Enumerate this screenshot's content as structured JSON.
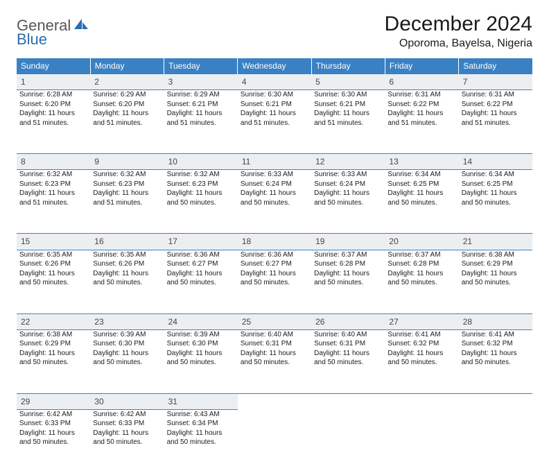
{
  "logo": {
    "word1": "General",
    "word2": "Blue",
    "text1_color": "#555555",
    "text2_color": "#2a6db0"
  },
  "title": "December 2024",
  "location": "Oporoma, Bayelsa, Nigeria",
  "day_headers": [
    "Sunday",
    "Monday",
    "Tuesday",
    "Wednesday",
    "Thursday",
    "Friday",
    "Saturday"
  ],
  "header_bg": "#3a81c4",
  "header_fg": "#ffffff",
  "daynum_bg": "#eceff1",
  "border_color": "#3a81c4",
  "cell_fontsize": 10,
  "weeks": [
    [
      {
        "n": 1,
        "sr": "6:28 AM",
        "ss": "6:20 PM",
        "dl": "11 hours and 51 minutes."
      },
      {
        "n": 2,
        "sr": "6:29 AM",
        "ss": "6:20 PM",
        "dl": "11 hours and 51 minutes."
      },
      {
        "n": 3,
        "sr": "6:29 AM",
        "ss": "6:21 PM",
        "dl": "11 hours and 51 minutes."
      },
      {
        "n": 4,
        "sr": "6:30 AM",
        "ss": "6:21 PM",
        "dl": "11 hours and 51 minutes."
      },
      {
        "n": 5,
        "sr": "6:30 AM",
        "ss": "6:21 PM",
        "dl": "11 hours and 51 minutes."
      },
      {
        "n": 6,
        "sr": "6:31 AM",
        "ss": "6:22 PM",
        "dl": "11 hours and 51 minutes."
      },
      {
        "n": 7,
        "sr": "6:31 AM",
        "ss": "6:22 PM",
        "dl": "11 hours and 51 minutes."
      }
    ],
    [
      {
        "n": 8,
        "sr": "6:32 AM",
        "ss": "6:23 PM",
        "dl": "11 hours and 51 minutes."
      },
      {
        "n": 9,
        "sr": "6:32 AM",
        "ss": "6:23 PM",
        "dl": "11 hours and 51 minutes."
      },
      {
        "n": 10,
        "sr": "6:32 AM",
        "ss": "6:23 PM",
        "dl": "11 hours and 50 minutes."
      },
      {
        "n": 11,
        "sr": "6:33 AM",
        "ss": "6:24 PM",
        "dl": "11 hours and 50 minutes."
      },
      {
        "n": 12,
        "sr": "6:33 AM",
        "ss": "6:24 PM",
        "dl": "11 hours and 50 minutes."
      },
      {
        "n": 13,
        "sr": "6:34 AM",
        "ss": "6:25 PM",
        "dl": "11 hours and 50 minutes."
      },
      {
        "n": 14,
        "sr": "6:34 AM",
        "ss": "6:25 PM",
        "dl": "11 hours and 50 minutes."
      }
    ],
    [
      {
        "n": 15,
        "sr": "6:35 AM",
        "ss": "6:26 PM",
        "dl": "11 hours and 50 minutes."
      },
      {
        "n": 16,
        "sr": "6:35 AM",
        "ss": "6:26 PM",
        "dl": "11 hours and 50 minutes."
      },
      {
        "n": 17,
        "sr": "6:36 AM",
        "ss": "6:27 PM",
        "dl": "11 hours and 50 minutes."
      },
      {
        "n": 18,
        "sr": "6:36 AM",
        "ss": "6:27 PM",
        "dl": "11 hours and 50 minutes."
      },
      {
        "n": 19,
        "sr": "6:37 AM",
        "ss": "6:28 PM",
        "dl": "11 hours and 50 minutes."
      },
      {
        "n": 20,
        "sr": "6:37 AM",
        "ss": "6:28 PM",
        "dl": "11 hours and 50 minutes."
      },
      {
        "n": 21,
        "sr": "6:38 AM",
        "ss": "6:29 PM",
        "dl": "11 hours and 50 minutes."
      }
    ],
    [
      {
        "n": 22,
        "sr": "6:38 AM",
        "ss": "6:29 PM",
        "dl": "11 hours and 50 minutes."
      },
      {
        "n": 23,
        "sr": "6:39 AM",
        "ss": "6:30 PM",
        "dl": "11 hours and 50 minutes."
      },
      {
        "n": 24,
        "sr": "6:39 AM",
        "ss": "6:30 PM",
        "dl": "11 hours and 50 minutes."
      },
      {
        "n": 25,
        "sr": "6:40 AM",
        "ss": "6:31 PM",
        "dl": "11 hours and 50 minutes."
      },
      {
        "n": 26,
        "sr": "6:40 AM",
        "ss": "6:31 PM",
        "dl": "11 hours and 50 minutes."
      },
      {
        "n": 27,
        "sr": "6:41 AM",
        "ss": "6:32 PM",
        "dl": "11 hours and 50 minutes."
      },
      {
        "n": 28,
        "sr": "6:41 AM",
        "ss": "6:32 PM",
        "dl": "11 hours and 50 minutes."
      }
    ],
    [
      {
        "n": 29,
        "sr": "6:42 AM",
        "ss": "6:33 PM",
        "dl": "11 hours and 50 minutes."
      },
      {
        "n": 30,
        "sr": "6:42 AM",
        "ss": "6:33 PM",
        "dl": "11 hours and 50 minutes."
      },
      {
        "n": 31,
        "sr": "6:43 AM",
        "ss": "6:34 PM",
        "dl": "11 hours and 50 minutes."
      },
      null,
      null,
      null,
      null
    ]
  ],
  "labels": {
    "sunrise": "Sunrise:",
    "sunset": "Sunset:",
    "daylight": "Daylight:"
  }
}
